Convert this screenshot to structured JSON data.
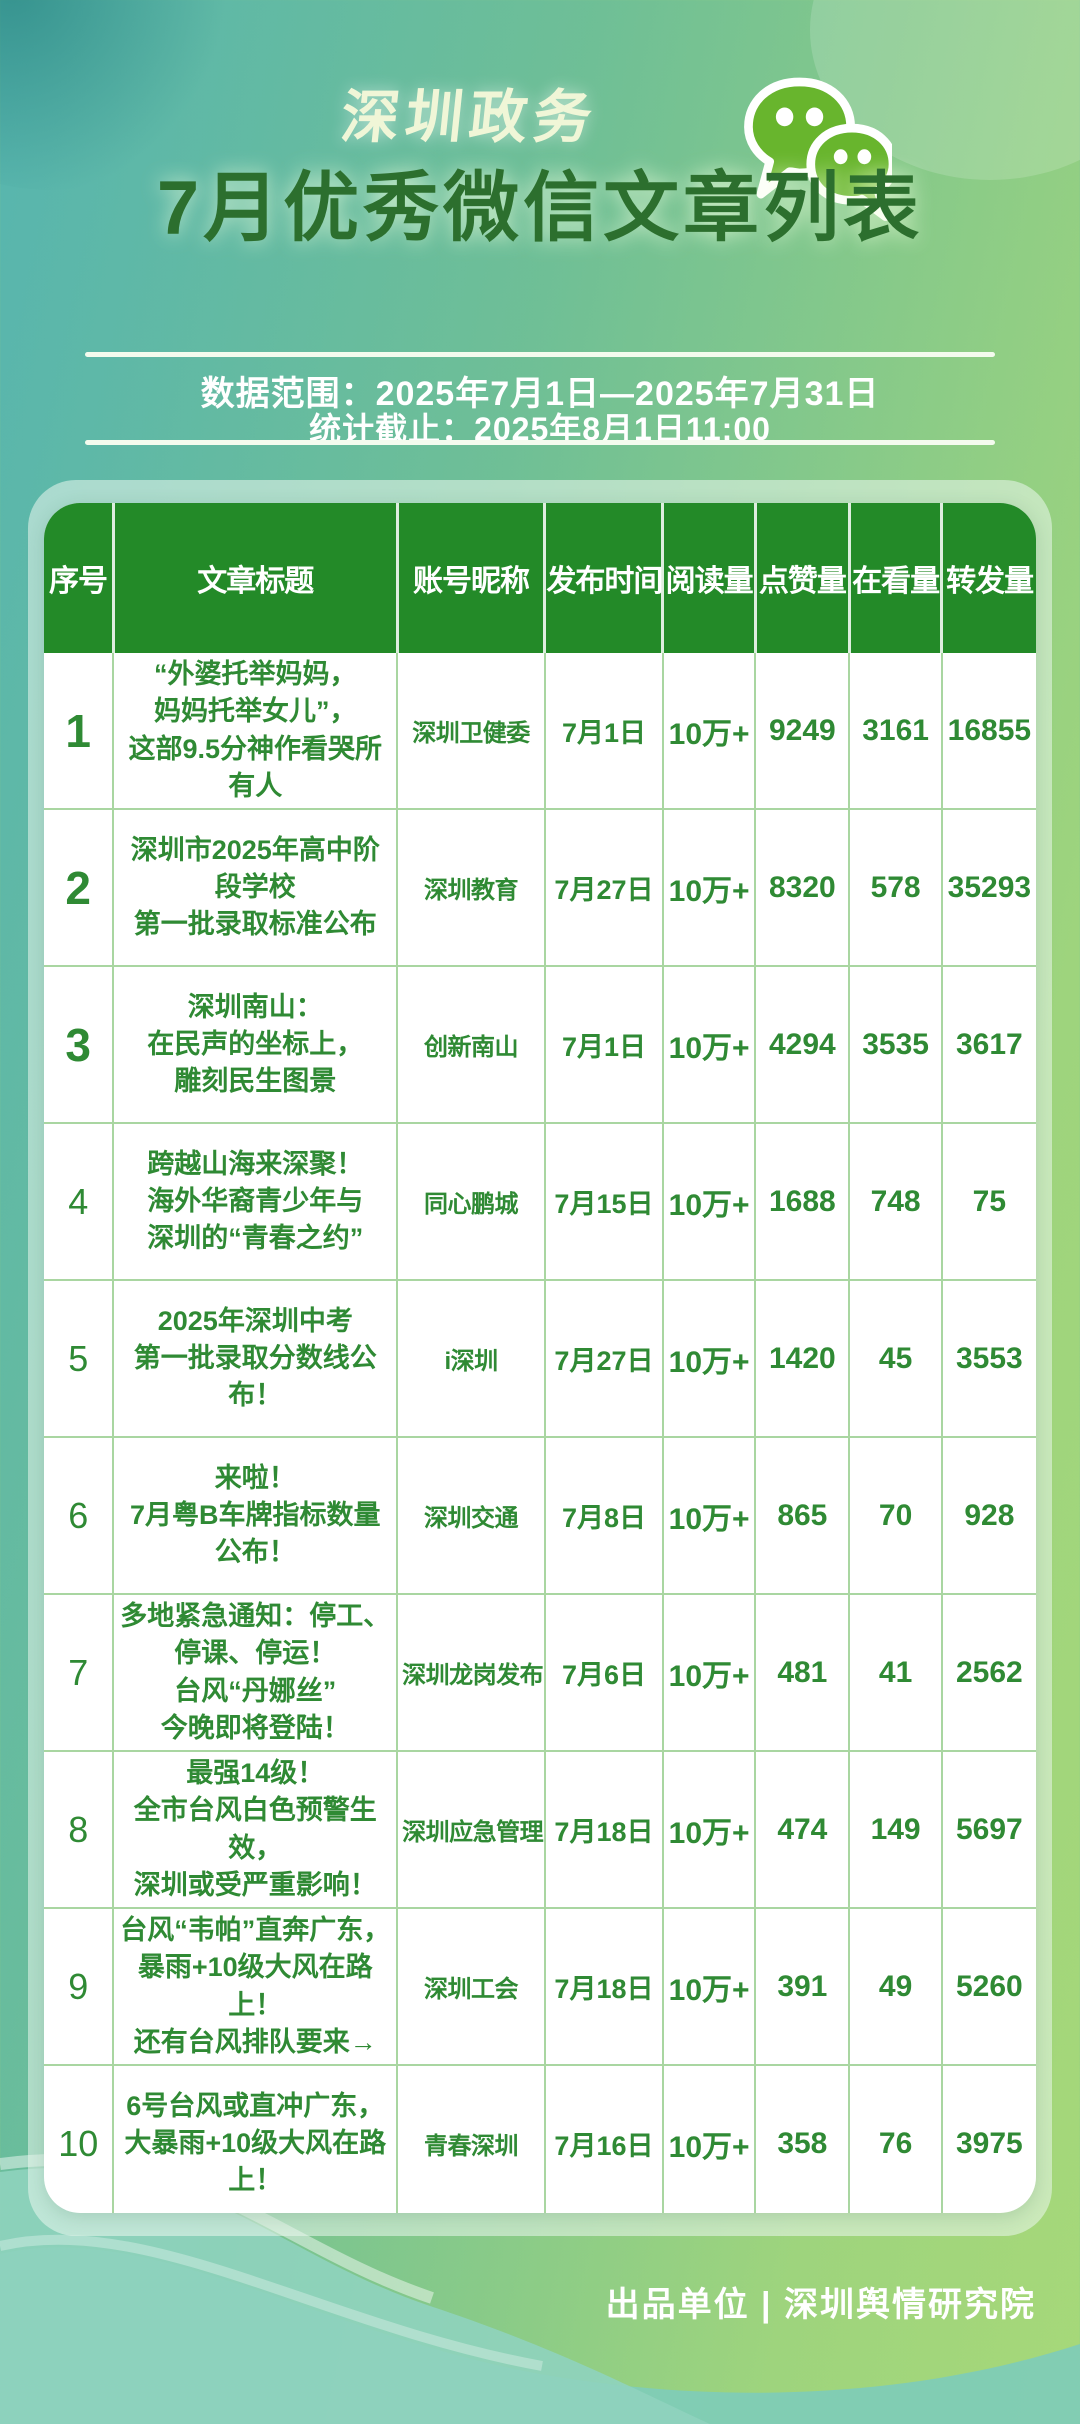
{
  "header": {
    "brand": "深圳政务",
    "title": "7月优秀微信文章列表",
    "data_range": "数据范围：2025年7月1日—2025年7月31日",
    "stats_deadline": "统计截止：2025年8月1日11:00"
  },
  "chart_data": {
    "type": "table",
    "title": "深圳政务 7月优秀微信文章列表",
    "columns": [
      "序号",
      "文章标题",
      "账号昵称",
      "发布时间",
      "阅读量",
      "点赞量",
      "在看量",
      "转发量"
    ],
    "rows": [
      {
        "no": "1",
        "title": "“外婆托举妈妈，\n妈妈托举女儿”，\n这部9.5分神作看哭所有人",
        "account": "深圳卫健委",
        "date": "7月1日",
        "reads": "10万+",
        "likes": "9249",
        "wow": "3161",
        "shares": "16855"
      },
      {
        "no": "2",
        "title": "深圳市2025年高中阶段学校\n第一批录取标准公布",
        "account": "深圳教育",
        "date": "7月27日",
        "reads": "10万+",
        "likes": "8320",
        "wow": "578",
        "shares": "35293"
      },
      {
        "no": "3",
        "title": "深圳南山：\n在民声的坐标上，\n雕刻民生图景",
        "account": "创新南山",
        "date": "7月1日",
        "reads": "10万+",
        "likes": "4294",
        "wow": "3535",
        "shares": "3617"
      },
      {
        "no": "4",
        "title": "跨越山海来深聚！\n海外华裔青少年与\n深圳的“青春之约”",
        "account": "同心鹏城",
        "date": "7月15日",
        "reads": "10万+",
        "likes": "1688",
        "wow": "748",
        "shares": "75"
      },
      {
        "no": "5",
        "title": "2025年深圳中考\n第一批录取分数线公布！",
        "account": "i深圳",
        "date": "7月27日",
        "reads": "10万+",
        "likes": "1420",
        "wow": "45",
        "shares": "3553"
      },
      {
        "no": "6",
        "title": "来啦！\n7月粤B车牌指标数量公布！",
        "account": "深圳交通",
        "date": "7月8日",
        "reads": "10万+",
        "likes": "865",
        "wow": "70",
        "shares": "928"
      },
      {
        "no": "7",
        "title": "多地紧急通知：停工、\n停课、停运！\n台风“丹娜丝”\n今晚即将登陆！",
        "account": "深圳龙岗发布",
        "date": "7月6日",
        "reads": "10万+",
        "likes": "481",
        "wow": "41",
        "shares": "2562"
      },
      {
        "no": "8",
        "title": "最强14级！\n全市台风白色预警生效，\n深圳或受严重影响！",
        "account": "深圳应急管理",
        "date": "7月18日",
        "reads": "10万+",
        "likes": "474",
        "wow": "149",
        "shares": "5697"
      },
      {
        "no": "9",
        "title": "台风“韦帕”直奔广东，\n暴雨+10级大风在路上！\n还有台风排队要来→",
        "account": "深圳工会",
        "date": "7月18日",
        "reads": "10万+",
        "likes": "391",
        "wow": "49",
        "shares": "5260"
      },
      {
        "no": "10",
        "title": "6号台风或直冲广东，\n大暴雨+10级大风在路上！",
        "account": "青春深圳",
        "date": "7月16日",
        "reads": "10万+",
        "likes": "358",
        "wow": "76",
        "shares": "3975"
      }
    ]
  },
  "footer": {
    "credit": "出品单位 | 深圳舆情研究院"
  },
  "icons": {
    "wechat": "wechat-icon"
  },
  "colors": {
    "header_green": "#238a28",
    "cell_text_green": "#2f8a34",
    "grid_green": "#a9d6a1",
    "title_dark_green": "#2c6f2e",
    "brand_cream": "#f0f6d7",
    "wechat_green": "#6ab62e",
    "bg_teal": "#57b5af",
    "bg_green": "#a6d879",
    "wave_teal": "#82cdb9"
  }
}
